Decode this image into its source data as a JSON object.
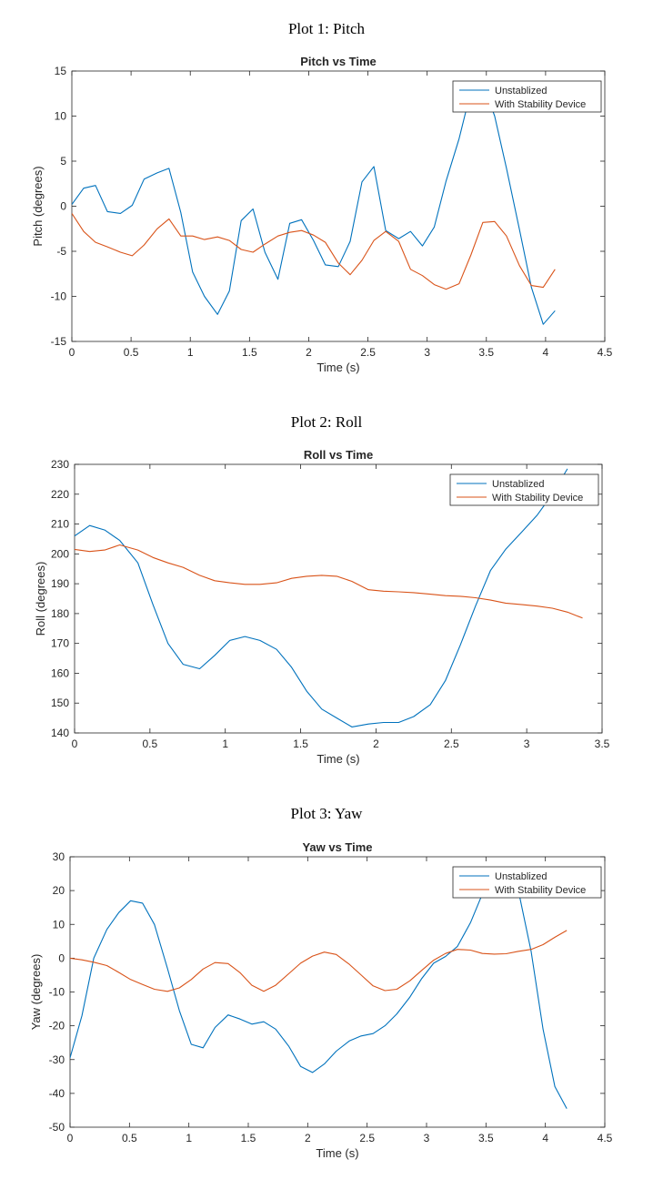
{
  "headings": {
    "plot1": "Plot 1: Pitch",
    "plot2": "Plot 2: Roll",
    "plot3": "Plot 3: Yaw"
  },
  "colors": {
    "unstabilized": "#0072BD",
    "stability": "#D95319"
  },
  "chart_data": [
    {
      "type": "line",
      "title": "Pitch vs Time",
      "xlabel": "Time (s)",
      "ylabel": "Pitch (degrees)",
      "xlim": [
        0,
        4.5
      ],
      "ylim": [
        -15,
        15
      ],
      "xticks": [
        0,
        0.5,
        1,
        1.5,
        2,
        2.5,
        3,
        3.5,
        4,
        4.5
      ],
      "yticks": [
        -15,
        -10,
        -5,
        0,
        5,
        10,
        15
      ],
      "grid": false,
      "legend": "top-right",
      "series": [
        {
          "name": "Unstablized",
          "x": [
            0,
            0.1,
            0.2,
            0.3,
            0.41,
            0.51,
            0.61,
            0.72,
            0.82,
            0.92,
            1.02,
            1.12,
            1.23,
            1.33,
            1.43,
            1.53,
            1.63,
            1.74,
            1.84,
            1.94,
            2.04,
            2.14,
            2.25,
            2.35,
            2.45,
            2.55,
            2.65,
            2.76,
            2.86,
            2.96,
            3.06,
            3.16,
            3.27,
            3.37,
            3.47,
            3.57,
            3.67,
            3.78,
            3.88,
            3.98,
            4.08
          ],
          "y": [
            0.2,
            2.0,
            2.3,
            -0.6,
            -0.8,
            0.1,
            3.0,
            3.7,
            4.2,
            -0.7,
            -7.3,
            -10.0,
            -12.0,
            -9.4,
            -1.6,
            -0.3,
            -5.1,
            -8.1,
            -1.9,
            -1.5,
            -3.8,
            -6.5,
            -6.7,
            -3.9,
            2.7,
            4.4,
            -2.7,
            -3.6,
            -2.8,
            -4.4,
            -2.3,
            2.8,
            7.5,
            12.8,
            13.6,
            10.0,
            4.2,
            -2.6,
            -9.0,
            -13.1,
            -11.6
          ]
        },
        {
          "name": "With Stability Device",
          "x": [
            0,
            0.1,
            0.2,
            0.3,
            0.41,
            0.51,
            0.61,
            0.72,
            0.82,
            0.92,
            1.02,
            1.12,
            1.23,
            1.33,
            1.43,
            1.53,
            1.63,
            1.74,
            1.84,
            1.94,
            2.04,
            2.14,
            2.25,
            2.35,
            2.45,
            2.55,
            2.65,
            2.76,
            2.86,
            2.96,
            3.06,
            3.16,
            3.27,
            3.37,
            3.47,
            3.57,
            3.67,
            3.78,
            3.88,
            3.98,
            4.08
          ],
          "y": [
            -0.8,
            -2.8,
            -4.0,
            -4.5,
            -5.1,
            -5.5,
            -4.3,
            -2.5,
            -1.4,
            -3.3,
            -3.3,
            -3.7,
            -3.4,
            -3.8,
            -4.8,
            -5.1,
            -4.2,
            -3.3,
            -2.9,
            -2.7,
            -3.2,
            -4.0,
            -6.3,
            -7.6,
            -6.0,
            -3.8,
            -2.8,
            -3.9,
            -7.0,
            -7.7,
            -8.7,
            -9.2,
            -8.6,
            -5.4,
            -1.8,
            -1.7,
            -3.3,
            -6.6,
            -8.8,
            -9.0,
            -7.0
          ]
        }
      ]
    },
    {
      "type": "line",
      "title": "Roll vs Time",
      "xlabel": "Time (s)",
      "ylabel": "Roll (degrees)",
      "xlim": [
        0,
        3.5
      ],
      "ylim": [
        140,
        230
      ],
      "xticks": [
        0,
        0.5,
        1,
        1.5,
        2,
        2.5,
        3,
        3.5
      ],
      "yticks": [
        140,
        150,
        160,
        170,
        180,
        190,
        200,
        210,
        220,
        230
      ],
      "grid": false,
      "legend": "top-right",
      "series": [
        {
          "name": "Unstablized",
          "x": [
            0,
            0.1,
            0.2,
            0.3,
            0.42,
            0.52,
            0.62,
            0.72,
            0.83,
            0.93,
            1.03,
            1.13,
            1.23,
            1.34,
            1.44,
            1.54,
            1.64,
            1.74,
            1.84,
            1.95,
            2.05,
            2.15,
            2.25,
            2.36,
            2.46,
            2.56,
            2.66,
            2.76,
            2.86,
            2.97,
            3.07,
            3.17,
            3.27
          ],
          "y": [
            206.0,
            209.5,
            208.0,
            204.5,
            197.0,
            183.0,
            170.0,
            163.0,
            161.5,
            166.0,
            171.0,
            172.3,
            171.0,
            168.0,
            162.0,
            154.0,
            148.0,
            145.0,
            142.0,
            143.0,
            143.5,
            143.5,
            145.5,
            149.5,
            157.5,
            169.5,
            182.5,
            194.5,
            201.5,
            207.5,
            213.0,
            220.0,
            228.5
          ]
        },
        {
          "name": "With Stability Device",
          "x": [
            0,
            0.1,
            0.2,
            0.3,
            0.42,
            0.52,
            0.62,
            0.72,
            0.83,
            0.93,
            1.03,
            1.13,
            1.23,
            1.34,
            1.44,
            1.54,
            1.64,
            1.74,
            1.84,
            1.95,
            2.05,
            2.15,
            2.25,
            2.36,
            2.46,
            2.56,
            2.66,
            2.76,
            2.86,
            2.97,
            3.07,
            3.17,
            3.27,
            3.37
          ],
          "y": [
            201.5,
            200.8,
            201.3,
            203.0,
            201.3,
            198.8,
            197.0,
            195.5,
            192.8,
            191.0,
            190.3,
            189.8,
            189.8,
            190.3,
            191.8,
            192.5,
            192.8,
            192.5,
            190.8,
            188.0,
            187.5,
            187.3,
            187.0,
            186.5,
            186.0,
            185.8,
            185.3,
            184.5,
            183.5,
            183.0,
            182.5,
            181.8,
            180.5,
            178.5
          ]
        }
      ]
    },
    {
      "type": "line",
      "title": "Yaw vs Time",
      "xlabel": "Time (s)",
      "ylabel": "Yaw (degrees)",
      "xlim": [
        0,
        4.5
      ],
      "ylim": [
        -50,
        30
      ],
      "xticks": [
        0,
        0.5,
        1,
        1.5,
        2,
        2.5,
        3,
        3.5,
        4,
        4.5
      ],
      "yticks": [
        -50,
        -40,
        -30,
        -20,
        -10,
        0,
        10,
        20,
        30
      ],
      "grid": false,
      "legend": "top-right",
      "series": [
        {
          "name": "Unstablized",
          "x": [
            0,
            0.1,
            0.2,
            0.31,
            0.41,
            0.51,
            0.61,
            0.71,
            0.82,
            0.92,
            1.02,
            1.12,
            1.22,
            1.33,
            1.43,
            1.53,
            1.63,
            1.73,
            1.84,
            1.94,
            2.04,
            2.14,
            2.24,
            2.35,
            2.45,
            2.55,
            2.65,
            2.75,
            2.86,
            2.96,
            3.06,
            3.16,
            3.26,
            3.37,
            3.47,
            3.57,
            3.67,
            3.77,
            3.88,
            3.98,
            4.08,
            4.18
          ],
          "y": [
            -29.5,
            -17.0,
            0,
            8.5,
            13.5,
            17.0,
            16.3,
            10.0,
            -3.0,
            -15.5,
            -25.5,
            -26.5,
            -20.5,
            -16.8,
            -18.0,
            -19.5,
            -18.8,
            -21.0,
            -26.0,
            -32.0,
            -33.8,
            -31.3,
            -27.5,
            -24.5,
            -23.0,
            -22.3,
            -20.0,
            -16.5,
            -11.5,
            -6.0,
            -1.5,
            0.5,
            3.5,
            10.5,
            19.0,
            24.5,
            26.0,
            20.5,
            2.0,
            -21.0,
            -38.0,
            -44.5
          ]
        },
        {
          "name": "With Stability Device",
          "x": [
            0,
            0.1,
            0.2,
            0.31,
            0.41,
            0.51,
            0.61,
            0.71,
            0.82,
            0.92,
            1.02,
            1.12,
            1.22,
            1.33,
            1.43,
            1.53,
            1.63,
            1.73,
            1.84,
            1.94,
            2.04,
            2.14,
            2.24,
            2.35,
            2.45,
            2.55,
            2.65,
            2.75,
            2.86,
            2.96,
            3.06,
            3.16,
            3.26,
            3.37,
            3.47,
            3.57,
            3.67,
            3.77,
            3.88,
            3.98,
            4.08,
            4.18
          ],
          "y": [
            0,
            -0.5,
            -1.2,
            -2.2,
            -4.2,
            -6.3,
            -7.8,
            -9.2,
            -9.8,
            -8.8,
            -6.3,
            -3.2,
            -1.3,
            -1.6,
            -4.3,
            -8.0,
            -9.8,
            -8.0,
            -4.6,
            -1.5,
            0.6,
            1.8,
            1.1,
            -1.8,
            -5.0,
            -8.2,
            -9.6,
            -9.2,
            -6.7,
            -3.6,
            -0.6,
            1.4,
            2.6,
            2.4,
            1.4,
            1.2,
            1.3,
            2.0,
            2.6,
            4.0,
            6.2,
            8.2
          ]
        }
      ]
    }
  ]
}
